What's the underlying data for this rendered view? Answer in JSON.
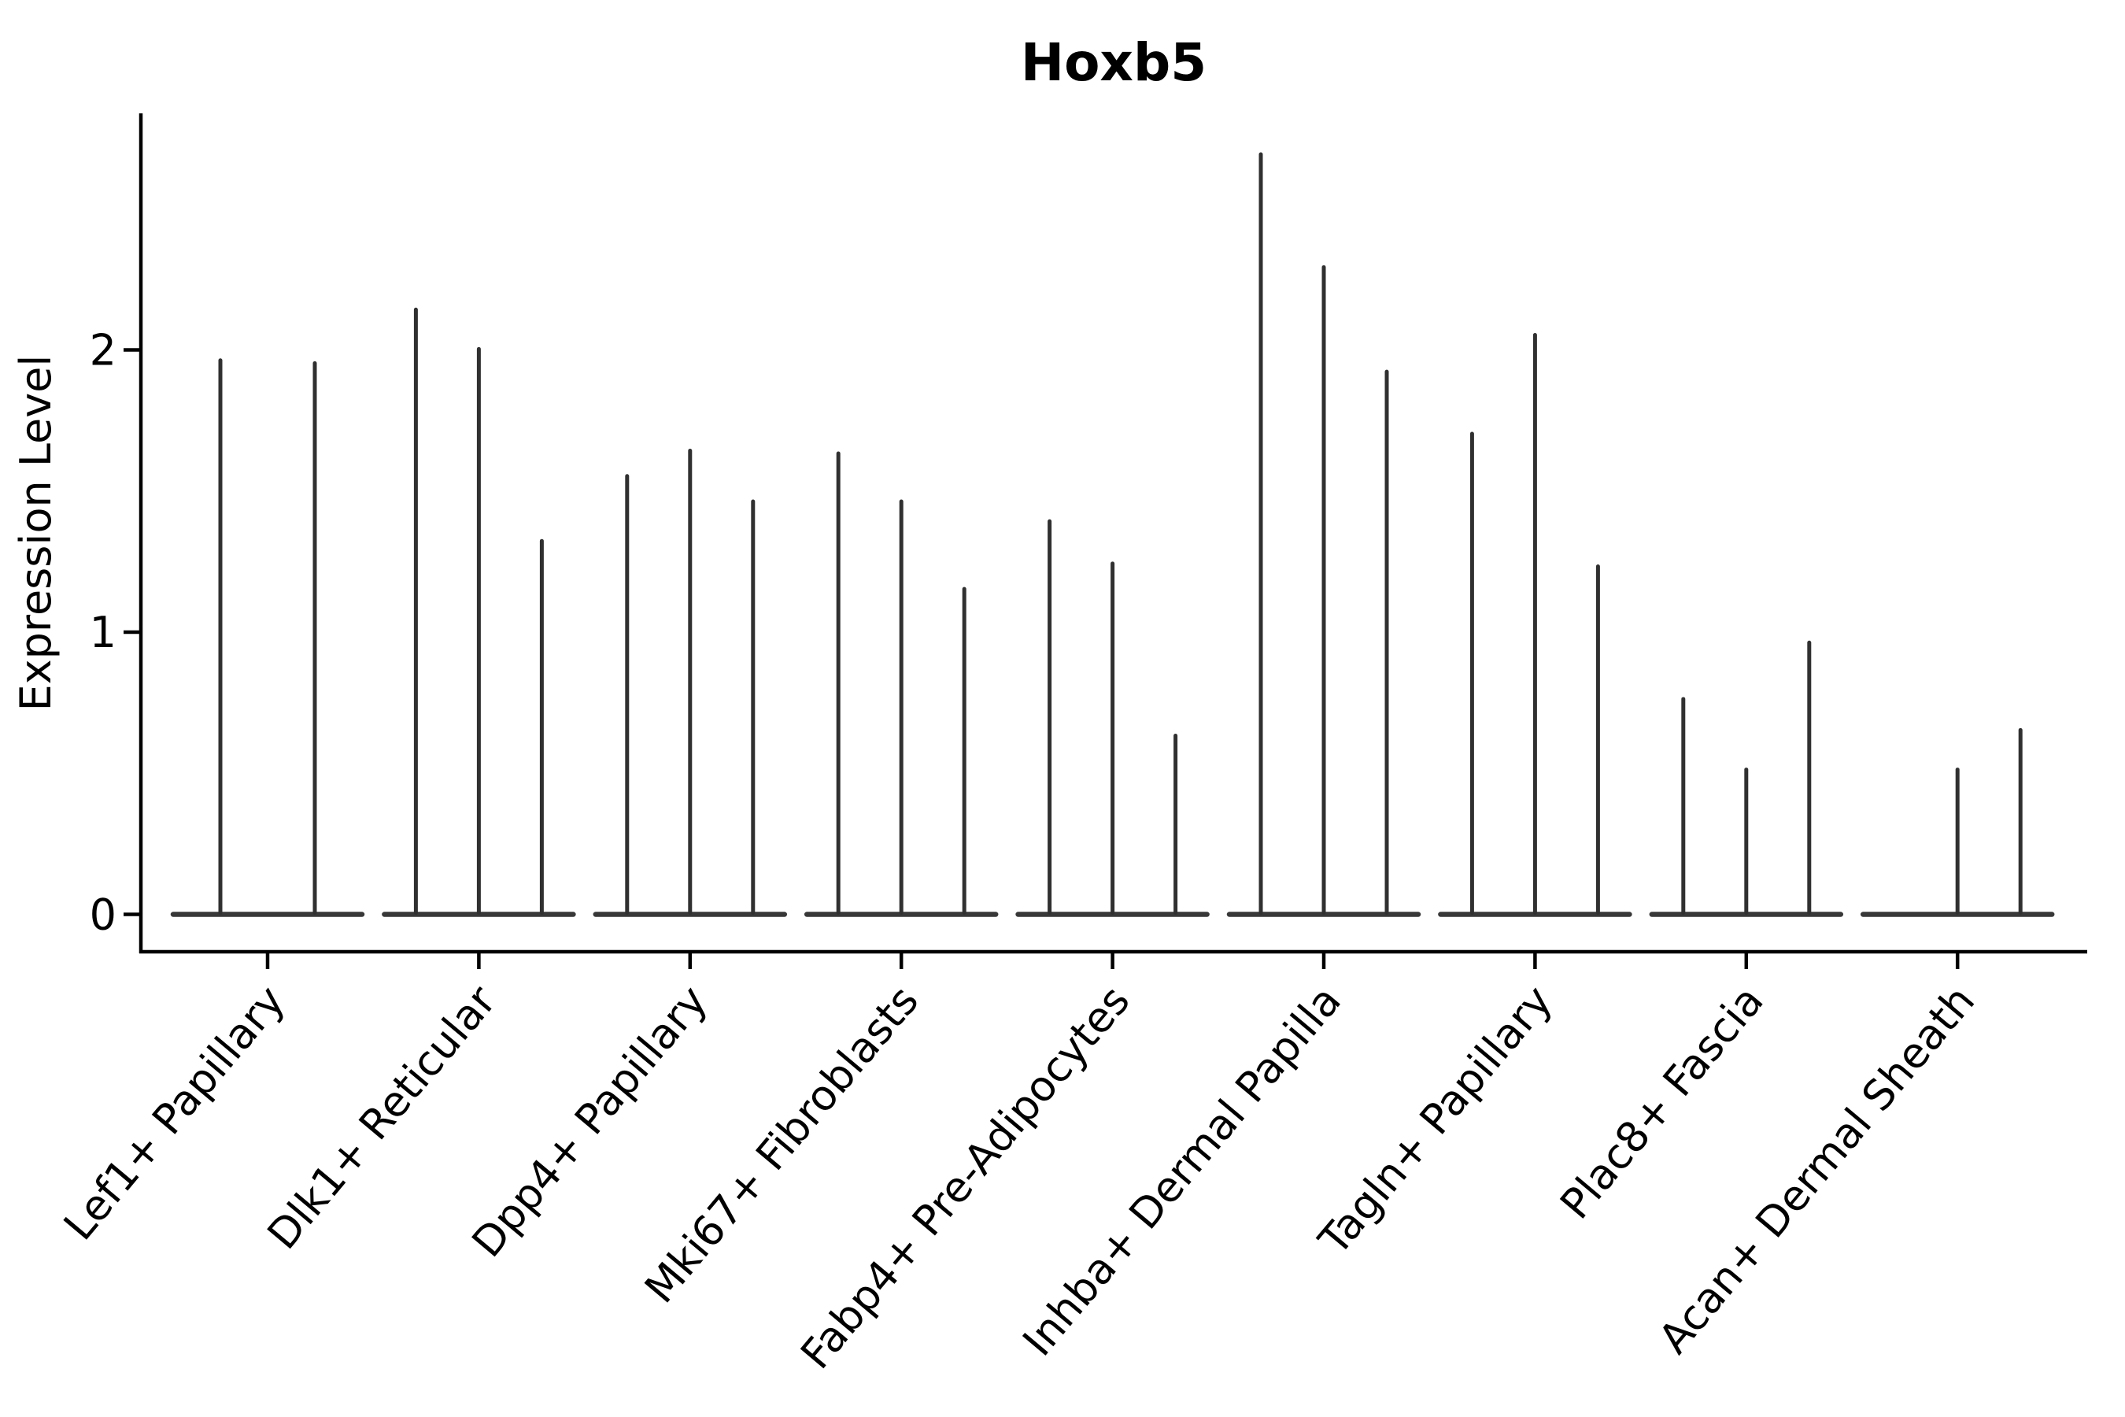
{
  "title": "Hoxb5",
  "colors": {
    "background": "#ffffff",
    "axis": "#000000",
    "text": "#000000",
    "violin": "#303030",
    "violin_base": "#383838"
  },
  "chart_data": {
    "type": "violin",
    "title": "Hoxb5",
    "xlabel": "",
    "ylabel": "Expression Level",
    "yticks": [
      0,
      1,
      2
    ],
    "ylim": [
      -0.13,
      2.84
    ],
    "grid": false,
    "legend": "none",
    "x_tick_rotation_deg": 50,
    "categories": [
      "Lef1+ Papillary",
      "Dlk1+ Reticular",
      "Dpp4+ Papillary",
      "Mki67+ Fibroblasts",
      "Fabp4+ Pre-Adipocytes",
      "Inhba+ Dermal Papilla",
      "Tagln+ Papillary",
      "Plac8+ Fascia",
      "Acan+ Dermal Sheath"
    ],
    "groups": [
      {
        "category": "Lef1+ Papillary",
        "violin_peaks": [
          1.97,
          1.96
        ]
      },
      {
        "category": "Dlk1+ Reticular",
        "violin_peaks": [
          2.15,
          2.01,
          1.33
        ]
      },
      {
        "category": "Dpp4+ Papillary",
        "violin_peaks": [
          1.56,
          1.65,
          1.47
        ]
      },
      {
        "category": "Mki67+ Fibroblasts",
        "violin_peaks": [
          1.64,
          1.47,
          1.16
        ]
      },
      {
        "category": "Fabp4+ Pre-Adipocytes",
        "violin_peaks": [
          1.4,
          1.25,
          0.64
        ]
      },
      {
        "category": "Inhba+ Dermal Papilla",
        "violin_peaks": [
          2.7,
          2.3,
          1.93
        ]
      },
      {
        "category": "Tagln+ Papillary",
        "violin_peaks": [
          1.71,
          2.06,
          1.24
        ]
      },
      {
        "category": "Plac8+ Fascia",
        "violin_peaks": [
          0.77,
          0.52,
          0.97
        ]
      },
      {
        "category": "Acan+ Dermal Sheath",
        "violin_peaks": [
          0.0,
          0.52,
          0.66
        ]
      }
    ]
  }
}
